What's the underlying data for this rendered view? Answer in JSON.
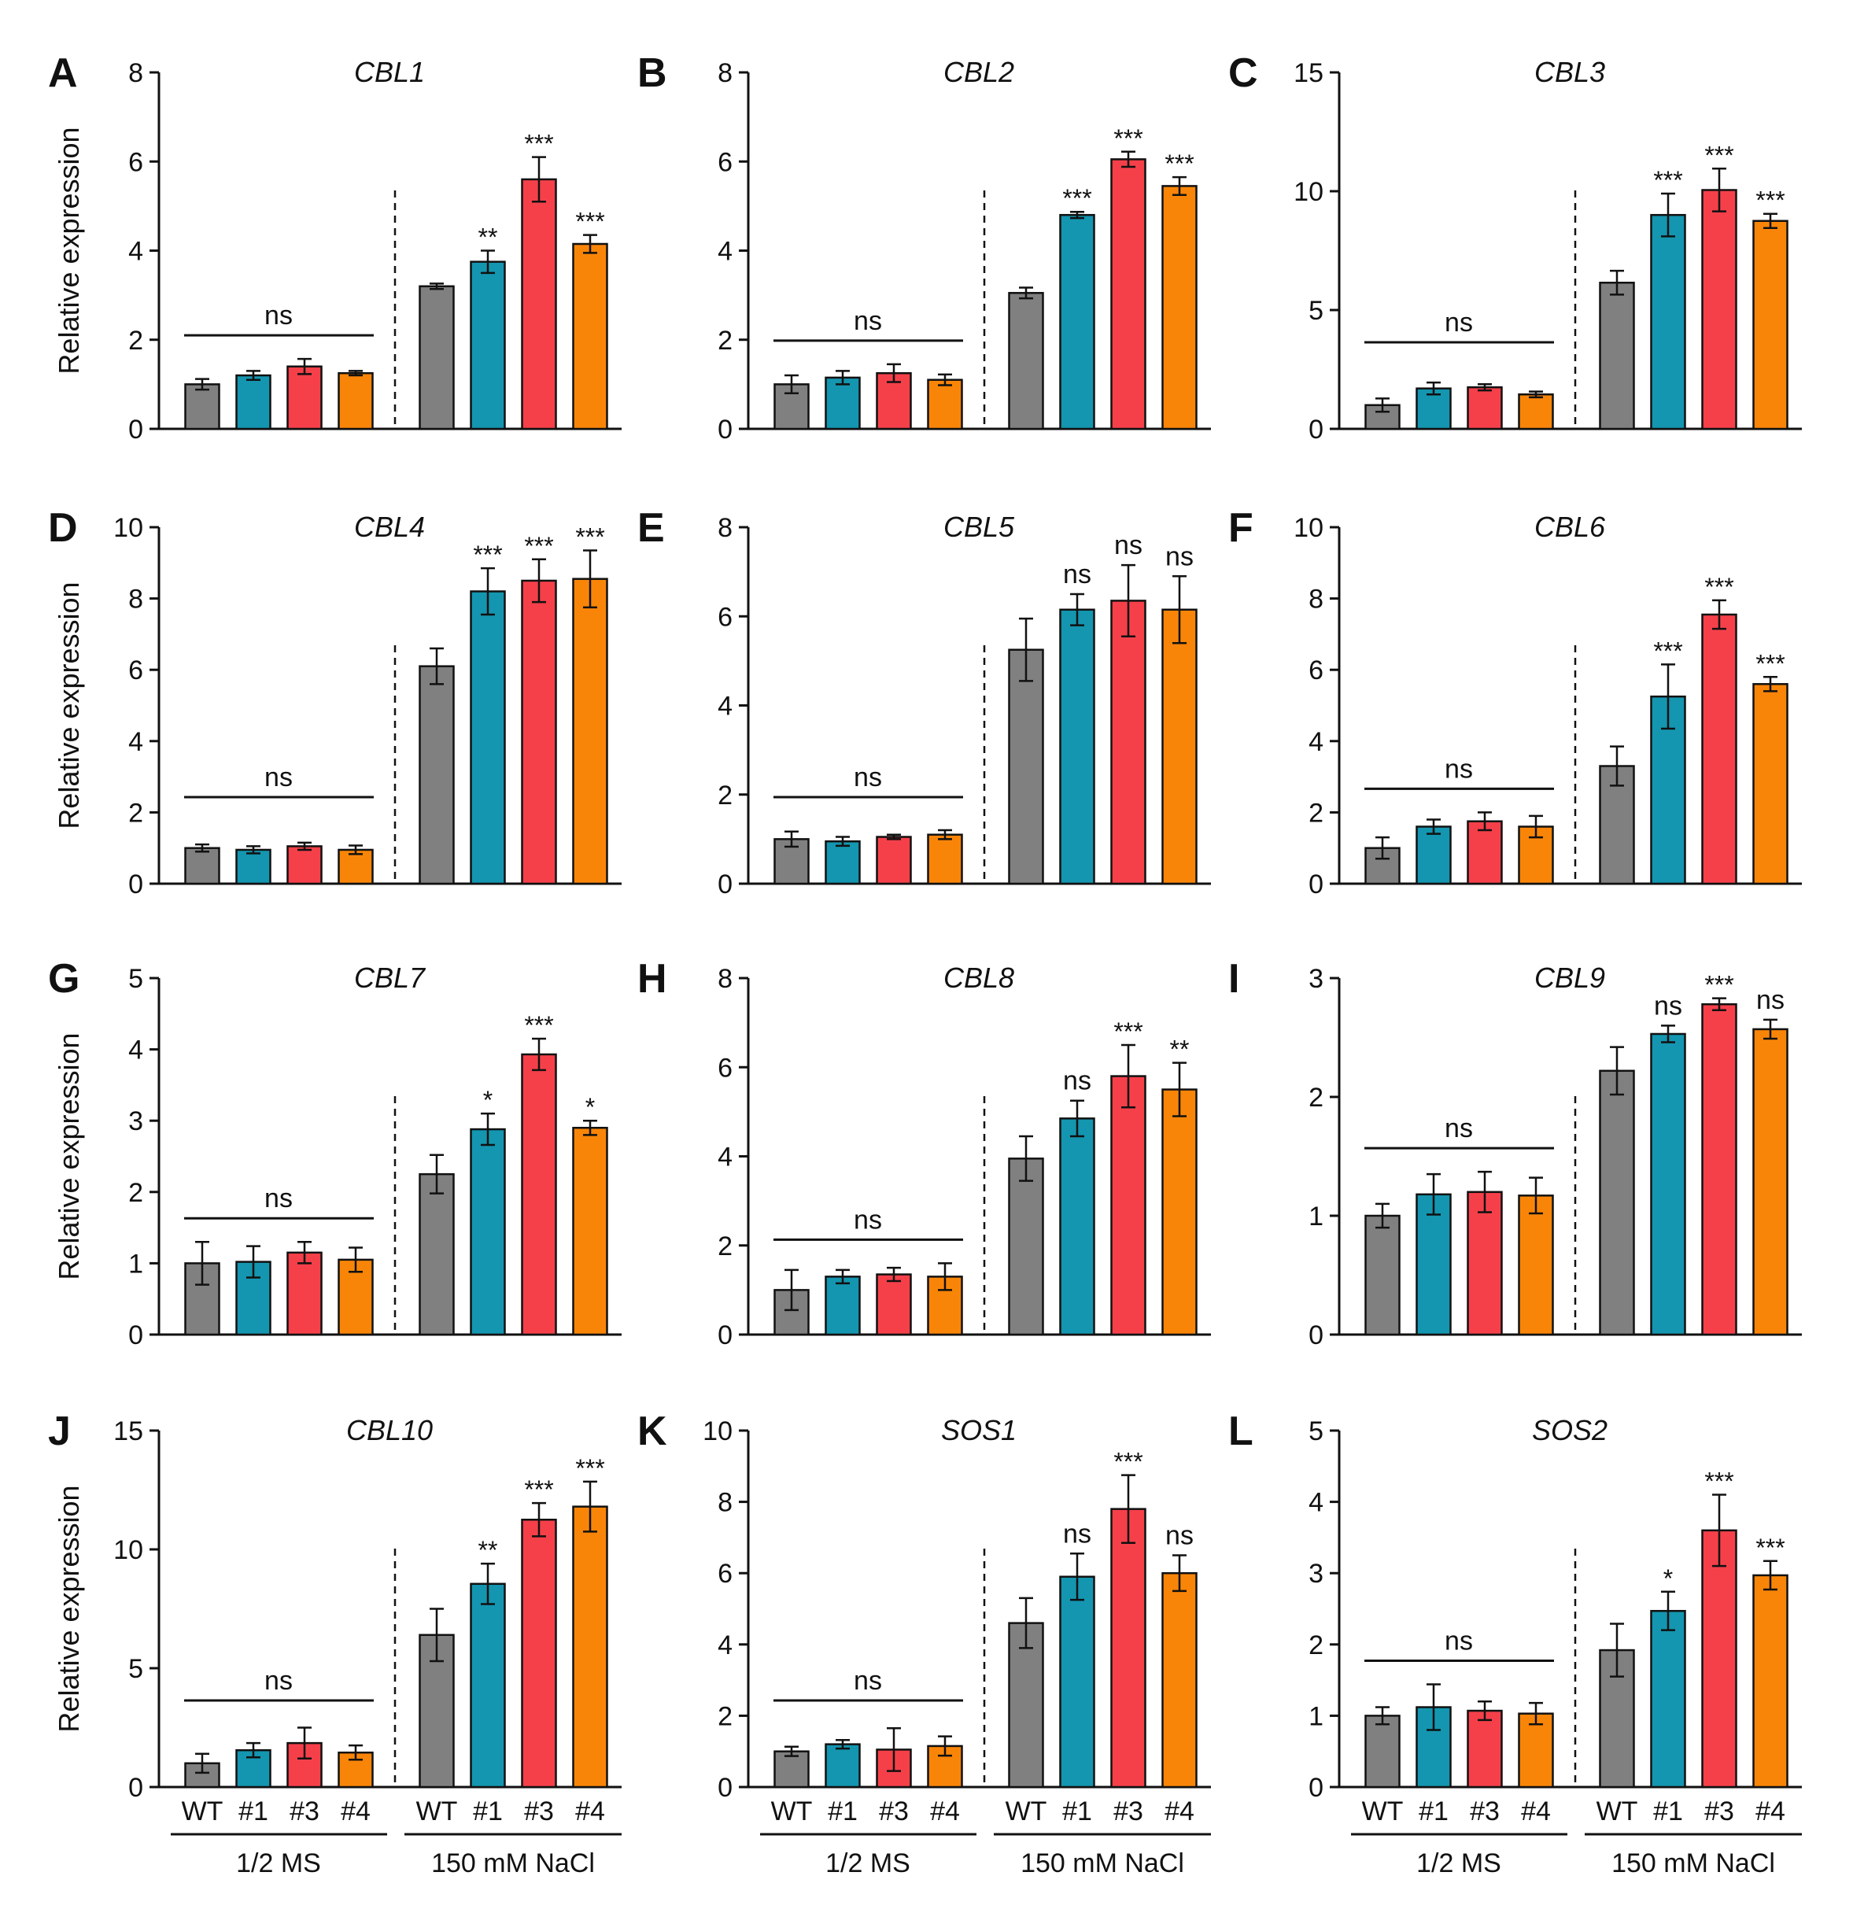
{
  "figure": {
    "ylabel": "Relative expression",
    "categories": [
      "WT",
      "#1",
      "#3",
      "#4"
    ],
    "groups": [
      "1/2 MS",
      "150 mM NaCl"
    ],
    "colors": {
      "WT": "#808080",
      "#1": "#1496b0",
      "#3": "#f5404a",
      "#4": "#f98508"
    },
    "ns_label": "ns"
  },
  "chart_data": [
    {
      "type": "bar",
      "panel": "A",
      "title": "CBL1",
      "ylim": [
        0,
        8
      ],
      "yticks": [
        0,
        2,
        4,
        6,
        8
      ],
      "series": [
        {
          "name": "1/2 MS",
          "values": [
            1.0,
            1.2,
            1.4,
            1.25
          ],
          "errors": [
            0.12,
            0.1,
            0.17,
            0.05
          ],
          "significance": "ns"
        },
        {
          "name": "150 mM NaCl",
          "values": [
            3.2,
            3.75,
            5.6,
            4.15
          ],
          "errors": [
            0.06,
            0.25,
            0.5,
            0.2
          ],
          "significance": [
            "",
            "**",
            "***",
            "***"
          ]
        }
      ]
    },
    {
      "type": "bar",
      "panel": "B",
      "title": "CBL2",
      "ylim": [
        0,
        8
      ],
      "yticks": [
        0,
        2,
        4,
        6,
        8
      ],
      "series": [
        {
          "name": "1/2 MS",
          "values": [
            1.0,
            1.15,
            1.25,
            1.1
          ],
          "errors": [
            0.2,
            0.15,
            0.2,
            0.12
          ],
          "significance": "ns"
        },
        {
          "name": "150 mM NaCl",
          "values": [
            3.05,
            4.8,
            6.05,
            5.45
          ],
          "errors": [
            0.12,
            0.07,
            0.17,
            0.2
          ],
          "significance": [
            "",
            "***",
            "***",
            "***"
          ]
        }
      ]
    },
    {
      "type": "bar",
      "panel": "C",
      "title": "CBL3",
      "ylim": [
        0,
        15
      ],
      "yticks": [
        0,
        5,
        10,
        15
      ],
      "series": [
        {
          "name": "1/2 MS",
          "values": [
            1.0,
            1.7,
            1.75,
            1.45
          ],
          "errors": [
            0.28,
            0.25,
            0.13,
            0.12
          ],
          "significance": "ns"
        },
        {
          "name": "150 mM NaCl",
          "values": [
            6.15,
            9.0,
            10.05,
            8.75
          ],
          "errors": [
            0.5,
            0.9,
            0.9,
            0.3
          ],
          "significance": [
            "",
            "***",
            "***",
            "***"
          ]
        }
      ]
    },
    {
      "type": "bar",
      "panel": "D",
      "title": "CBL4",
      "ylim": [
        0,
        10
      ],
      "yticks": [
        0,
        2,
        4,
        6,
        8,
        10
      ],
      "series": [
        {
          "name": "1/2 MS",
          "values": [
            1.0,
            0.95,
            1.05,
            0.95
          ],
          "errors": [
            0.1,
            0.1,
            0.1,
            0.12
          ],
          "significance": "ns"
        },
        {
          "name": "150 mM NaCl",
          "values": [
            6.1,
            8.2,
            8.5,
            8.55
          ],
          "errors": [
            0.5,
            0.65,
            0.6,
            0.8
          ],
          "significance": [
            "",
            "***",
            "***",
            "***"
          ]
        }
      ]
    },
    {
      "type": "bar",
      "panel": "E",
      "title": "CBL5",
      "ylim": [
        0,
        8
      ],
      "yticks": [
        0,
        2,
        4,
        6,
        8
      ],
      "series": [
        {
          "name": "1/2 MS",
          "values": [
            1.0,
            0.95,
            1.05,
            1.1
          ],
          "errors": [
            0.17,
            0.1,
            0.05,
            0.1
          ],
          "significance": "ns"
        },
        {
          "name": "150 mM NaCl",
          "values": [
            5.25,
            6.15,
            6.35,
            6.15
          ],
          "errors": [
            0.7,
            0.35,
            0.8,
            0.75
          ],
          "significance": [
            "",
            "ns",
            "ns",
            "ns"
          ]
        }
      ]
    },
    {
      "type": "bar",
      "panel": "F",
      "title": "CBL6",
      "ylim": [
        0,
        10
      ],
      "yticks": [
        0,
        2,
        4,
        6,
        8,
        10
      ],
      "series": [
        {
          "name": "1/2 MS",
          "values": [
            1.0,
            1.6,
            1.75,
            1.6
          ],
          "errors": [
            0.3,
            0.2,
            0.25,
            0.3
          ],
          "significance": "ns"
        },
        {
          "name": "150 mM NaCl",
          "values": [
            3.3,
            5.25,
            7.55,
            5.6
          ],
          "errors": [
            0.55,
            0.9,
            0.4,
            0.2
          ],
          "significance": [
            "",
            "***",
            "***",
            "***"
          ]
        }
      ]
    },
    {
      "type": "bar",
      "panel": "G",
      "title": "CBL7",
      "ylim": [
        0,
        5
      ],
      "yticks": [
        0,
        1,
        2,
        3,
        4,
        5
      ],
      "series": [
        {
          "name": "1/2 MS",
          "values": [
            1.0,
            1.02,
            1.15,
            1.05
          ],
          "errors": [
            0.3,
            0.22,
            0.15,
            0.17
          ],
          "significance": "ns"
        },
        {
          "name": "150 mM NaCl",
          "values": [
            2.25,
            2.88,
            3.93,
            2.9
          ],
          "errors": [
            0.27,
            0.22,
            0.22,
            0.1
          ],
          "significance": [
            "",
            "*",
            "***",
            "*"
          ]
        }
      ]
    },
    {
      "type": "bar",
      "panel": "H",
      "title": "CBL8",
      "ylim": [
        0,
        8
      ],
      "yticks": [
        0,
        2,
        4,
        6,
        8
      ],
      "series": [
        {
          "name": "1/2 MS",
          "values": [
            1.0,
            1.3,
            1.35,
            1.3
          ],
          "errors": [
            0.45,
            0.15,
            0.15,
            0.3
          ],
          "significance": "ns"
        },
        {
          "name": "150 mM NaCl",
          "values": [
            3.95,
            4.85,
            5.8,
            5.5
          ],
          "errors": [
            0.5,
            0.4,
            0.7,
            0.6
          ],
          "significance": [
            "",
            "ns",
            "***",
            "**"
          ]
        }
      ]
    },
    {
      "type": "bar",
      "panel": "I",
      "title": "CBL9",
      "ylim": [
        0,
        3
      ],
      "yticks": [
        0,
        1,
        2,
        3
      ],
      "series": [
        {
          "name": "1/2 MS",
          "values": [
            1.0,
            1.18,
            1.2,
            1.17
          ],
          "errors": [
            0.1,
            0.17,
            0.17,
            0.15
          ],
          "significance": "ns"
        },
        {
          "name": "150 mM NaCl",
          "values": [
            2.22,
            2.53,
            2.78,
            2.57
          ],
          "errors": [
            0.2,
            0.07,
            0.05,
            0.08
          ],
          "significance": [
            "",
            "ns",
            "***",
            "ns"
          ]
        }
      ]
    },
    {
      "type": "bar",
      "panel": "J",
      "title": "CBL10",
      "ylim": [
        0,
        15
      ],
      "yticks": [
        0,
        5,
        10,
        15
      ],
      "series": [
        {
          "name": "1/2 MS",
          "values": [
            1.0,
            1.55,
            1.85,
            1.45
          ],
          "errors": [
            0.4,
            0.3,
            0.65,
            0.3
          ],
          "significance": "ns"
        },
        {
          "name": "150 mM NaCl",
          "values": [
            6.4,
            8.55,
            11.25,
            11.8
          ],
          "errors": [
            1.1,
            0.85,
            0.7,
            1.05
          ],
          "significance": [
            "",
            "**",
            "***",
            "***"
          ]
        }
      ]
    },
    {
      "type": "bar",
      "panel": "K",
      "title": "SOS1",
      "ylim": [
        0,
        10
      ],
      "yticks": [
        0,
        2,
        4,
        6,
        8,
        10
      ],
      "series": [
        {
          "name": "1/2 MS",
          "values": [
            1.0,
            1.2,
            1.05,
            1.15
          ],
          "errors": [
            0.13,
            0.12,
            0.6,
            0.27
          ],
          "significance": "ns"
        },
        {
          "name": "150 mM NaCl",
          "values": [
            4.6,
            5.9,
            7.8,
            6.0
          ],
          "errors": [
            0.7,
            0.65,
            0.95,
            0.5
          ],
          "significance": [
            "",
            "ns",
            "***",
            "ns"
          ]
        }
      ]
    },
    {
      "type": "bar",
      "panel": "L",
      "title": "SOS2",
      "ylim": [
        0,
        5
      ],
      "yticks": [
        0,
        1,
        2,
        3,
        4,
        5
      ],
      "series": [
        {
          "name": "1/2 MS",
          "values": [
            1.0,
            1.12,
            1.07,
            1.03
          ],
          "errors": [
            0.12,
            0.32,
            0.13,
            0.15
          ],
          "significance": "ns"
        },
        {
          "name": "150 mM NaCl",
          "values": [
            1.92,
            2.47,
            3.6,
            2.97
          ],
          "errors": [
            0.37,
            0.27,
            0.5,
            0.2
          ],
          "significance": [
            "",
            "*",
            "***",
            "***"
          ]
        }
      ]
    }
  ]
}
